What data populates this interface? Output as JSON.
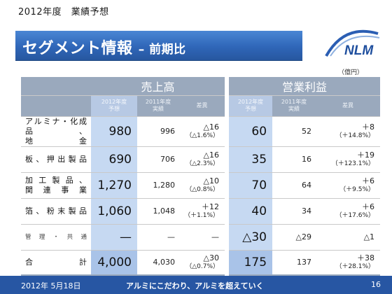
{
  "header": {
    "top_title": "2012年度　業績予想",
    "banner_title": "セグメント情報",
    "banner_subtitle": "– 前期比",
    "logo_text": "NLM"
  },
  "unit": "（億円）",
  "table": {
    "group_sales": "売上高",
    "group_profit": "営業利益",
    "col_cur": "2012年度\n予想",
    "col_prev": "2011年度\n実績",
    "col_diff": "差異",
    "rows": [
      {
        "label": "アルミナ・化成品、地　　　金",
        "label_line1": "アルミナ・化成品、",
        "label_line2": "地　　　金",
        "s_cur": "980",
        "s_prev": "996",
        "s_diff": "△16",
        "s_pct": "（△1.6%）",
        "p_cur": "60",
        "p_prev": "52",
        "p_diff": "＋8",
        "p_pct": "（＋14.8%）"
      },
      {
        "label_line1": "板、押出製品",
        "label_line2": "",
        "s_cur": "690",
        "s_prev": "706",
        "s_diff": "△16",
        "s_pct": "（△2.3%）",
        "p_cur": "35",
        "p_prev": "16",
        "p_diff": "＋19",
        "p_pct": "（＋123.1%）"
      },
      {
        "label_line1": "加工製品、",
        "label_line2": "関連事業",
        "s_cur": "1,270",
        "s_prev": "1,280",
        "s_diff": "△10",
        "s_pct": "（△0.8%）",
        "p_cur": "70",
        "p_prev": "64",
        "p_diff": "＋6",
        "p_pct": "（＋9.5%）"
      },
      {
        "label_line1": "箔、粉末製品",
        "label_line2": "",
        "s_cur": "1,060",
        "s_prev": "1,048",
        "s_diff": "＋12",
        "s_pct": "（＋1.1%）",
        "p_cur": "40",
        "p_prev": "34",
        "p_diff": "＋6",
        "p_pct": "（＋17.6%）"
      },
      {
        "label_line1": "管理・共通",
        "label_line2": "",
        "s_cur": "—",
        "s_prev": "—",
        "s_diff": "—",
        "s_pct": "",
        "p_cur": "△30",
        "p_prev": "△29",
        "p_diff": "△1",
        "p_pct": ""
      },
      {
        "label_line1": "合　　　　計",
        "label_line2": "",
        "s_cur": "4,000",
        "s_prev": "4,030",
        "s_diff": "△30",
        "s_pct": "（△0.7%）",
        "p_cur": "175",
        "p_prev": "137",
        "p_diff": "＋38",
        "p_pct": "（＋28.1%）"
      }
    ]
  },
  "footer": {
    "date": "2012年 5月18日",
    "slogan": "アルミにこだわり、アルミを超えていく",
    "page": "16"
  },
  "colors": {
    "banner": "#2f66b8",
    "header_cell": "#9aa9bd",
    "current_cell": "#c6d9f2",
    "footer": "#2756a3"
  }
}
